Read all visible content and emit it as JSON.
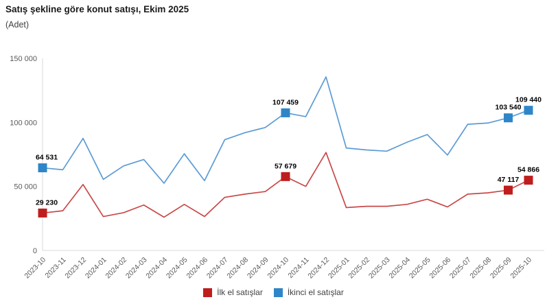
{
  "header": {
    "title": "Satış şekline göre konut satışı, Ekim 2025",
    "subtitle": "(Adet)"
  },
  "chart_data": {
    "type": "line",
    "title": "Satış şekline göre konut satışı, Ekim 2025",
    "ylabel": "(Adet)",
    "ylim": [
      0,
      150000
    ],
    "grid": false,
    "legend_position": "bottom-center",
    "text_color": "#595959",
    "axis_color": "#D9D9D9",
    "y_axis": {
      "ticks": [
        {
          "value": 0,
          "label": "0"
        },
        {
          "value": 50000,
          "label": "50 000"
        },
        {
          "value": 100000,
          "label": "100 000"
        },
        {
          "value": 150000,
          "label": "150 000"
        }
      ]
    },
    "categories": [
      "2023-10",
      "2023-11",
      "2023-12",
      "2024-01",
      "2024-02",
      "2024-03",
      "2024-04",
      "2024-05",
      "2024-06",
      "2024-07",
      "2024-08",
      "2024-09",
      "2024-10",
      "2024-11",
      "2024-12",
      "2025-01",
      "2025-02",
      "2025-03",
      "2025-04",
      "2025-05",
      "2025-06",
      "2025-07",
      "2025-08",
      "2025-09",
      "2025-10"
    ],
    "series": [
      {
        "id": "ilk-el",
        "name": "İlk el satışlar",
        "marker_color": "#BE1E1E",
        "line_color": "#C94848",
        "values": [
          29230,
          31000,
          51500,
          26500,
          29500,
          35500,
          26000,
          36000,
          26500,
          41500,
          44000,
          46000,
          57679,
          50000,
          76500,
          33500,
          34500,
          34500,
          36000,
          40000,
          34000,
          44000,
          45000,
          47117,
          54866
        ],
        "labeled_points": [
          {
            "index": 0,
            "label": "29 230"
          },
          {
            "index": 12,
            "label": "57 679"
          },
          {
            "index": 23,
            "label": "47 117"
          },
          {
            "index": 24,
            "label": "54 866"
          }
        ]
      },
      {
        "id": "ikinci-el",
        "name": "İkinci el satışlar",
        "marker_color": "#2E86C8",
        "line_color": "#5B9BD5",
        "values": [
          64531,
          63000,
          87500,
          55500,
          66000,
          71000,
          52500,
          75500,
          54500,
          86500,
          92000,
          96000,
          107459,
          104500,
          135500,
          80000,
          78500,
          77500,
          84500,
          90500,
          74500,
          98500,
          99500,
          103540,
          109440
        ],
        "labeled_points": [
          {
            "index": 0,
            "label": "64 531"
          },
          {
            "index": 12,
            "label": "107 459"
          },
          {
            "index": 23,
            "label": "103 540"
          },
          {
            "index": 24,
            "label": "109 440"
          }
        ]
      }
    ]
  }
}
